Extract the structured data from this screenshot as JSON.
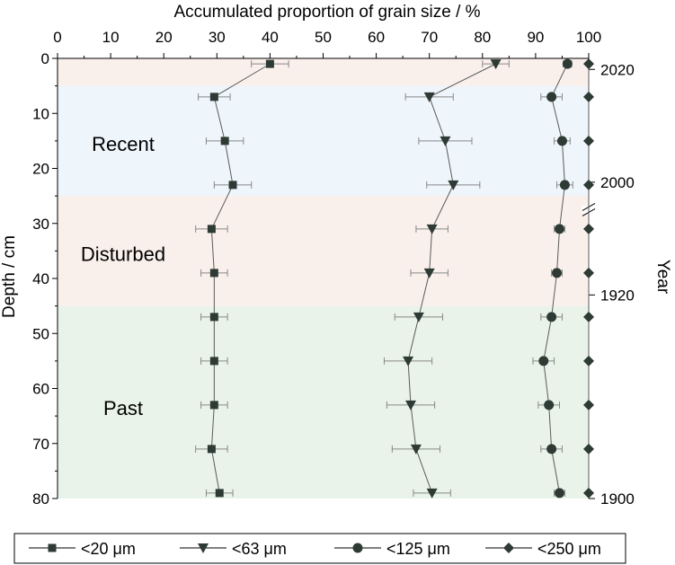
{
  "chart_data": {
    "type": "scatter",
    "title": "",
    "xlabel": "Accumulated proportion of grain size  / %",
    "ylabel": "Depth / cm",
    "y2label": "Year",
    "xlim": [
      0,
      100
    ],
    "ylim": [
      0,
      80
    ],
    "y_inverted": true,
    "x_axis_position": "top",
    "grid": false,
    "legend_position": "bottom",
    "x_ticks": [
      "0",
      "10",
      "20",
      "30",
      "40",
      "50",
      "60",
      "70",
      "80",
      "90",
      "100"
    ],
    "y_ticks": [
      "0",
      "10",
      "20",
      "30",
      "40",
      "50",
      "60",
      "70",
      "80"
    ],
    "year_ticks": [
      {
        "depth": 2,
        "label": "2020"
      },
      {
        "depth": 22.5,
        "label": "2000"
      },
      {
        "depth": 43,
        "label": "1920"
      },
      {
        "depth": 80,
        "label": "1900"
      }
    ],
    "axis_break_depth": 27.5,
    "zones": [
      {
        "label": "",
        "from": 0,
        "to": 5,
        "color": "#f9f0ec"
      },
      {
        "label": "Recent",
        "from": 5,
        "to": 25,
        "color": "#eef5fb",
        "label_depth": 15.5
      },
      {
        "label": "Disturbed",
        "from": 25,
        "to": 45,
        "color": "#f9f0ec",
        "label_depth": 35.5
      },
      {
        "label": "Past",
        "from": 45,
        "to": 80,
        "color": "#e9f3e9",
        "label_depth": 63.5
      }
    ],
    "depths": [
      1,
      7,
      15,
      23,
      31,
      39,
      47,
      55,
      63,
      71,
      79
    ],
    "series": [
      {
        "name": "<20 μm",
        "marker": "square",
        "values": [
          40,
          29.5,
          31.5,
          33,
          29,
          29.5,
          29.5,
          29.5,
          29.5,
          29,
          30.5
        ],
        "errors": [
          3.5,
          3,
          3.5,
          3.5,
          3,
          2.5,
          2.5,
          2.5,
          2.5,
          3,
          2.5
        ]
      },
      {
        "name": "<63 μm",
        "marker": "triangle-down",
        "values": [
          82.5,
          70,
          73,
          74.5,
          70.5,
          70,
          68,
          66,
          66.5,
          67.5,
          70.5
        ],
        "errors": [
          2.5,
          4.5,
          5,
          5,
          3,
          3.5,
          4.5,
          4.5,
          4.5,
          4.5,
          3.5
        ]
      },
      {
        "name": "<125 μm",
        "marker": "circle",
        "values": [
          96,
          93,
          95,
          95.5,
          94.5,
          94,
          93,
          91.5,
          92.5,
          93,
          94.5
        ],
        "errors": [
          0.8,
          2,
          1.5,
          1.5,
          1,
          1,
          2,
          2,
          2,
          2,
          1
        ]
      },
      {
        "name": "<250 μm",
        "marker": "diamond",
        "values": [
          100,
          100,
          100,
          100,
          100,
          100,
          100,
          100,
          100,
          100,
          100
        ],
        "errors": [
          0,
          0,
          0,
          0,
          0,
          0,
          0,
          0,
          0,
          0,
          0
        ]
      }
    ]
  }
}
